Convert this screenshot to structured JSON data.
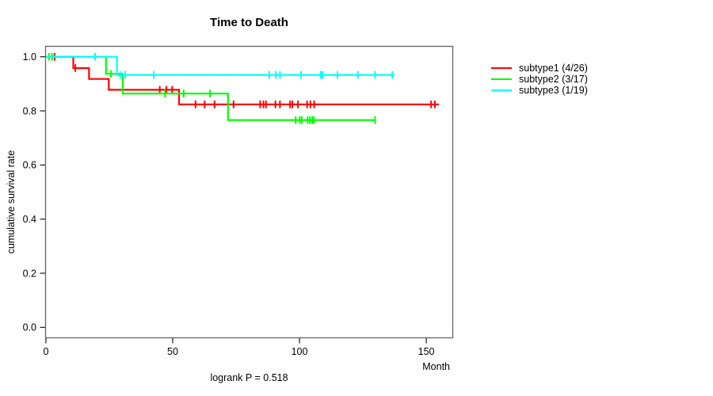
{
  "title": "Time to Death",
  "xlabel": "Month",
  "ylabel": "cumulative survival rate",
  "footnote": "logrank P = 0.518",
  "axes": {
    "x_ticks": [
      0,
      50,
      100,
      150
    ],
    "y_ticks": [
      {
        "label": "1.0",
        "value": 1.0
      },
      {
        "label": "0.8",
        "value": 0.8
      },
      {
        "label": "0.6",
        "value": 0.6
      },
      {
        "label": "0.4",
        "value": 0.4
      },
      {
        "label": "0.2",
        "value": 0.2
      },
      {
        "label": "0.0",
        "value": 0.0
      }
    ],
    "xlim": [
      -0.3,
      160.6
    ],
    "ylim": [
      -0.04,
      1.04
    ],
    "grid": false
  },
  "colors": {
    "subtype1": "#ff0000",
    "subtype2": "#00ff00",
    "subtype3": "#00ffff",
    "box": "#6b6b6b",
    "tick": "#1a1a1a",
    "text": "#000000"
  },
  "legend": [
    {
      "label": "subtype1 (4/26)",
      "color": "#ff0000"
    },
    {
      "label": "subtype2 (3/17)",
      "color": "#00ff00"
    },
    {
      "label": "subtype3 (1/19)",
      "color": "#00ffff"
    }
  ],
  "chart_data": {
    "type": "line",
    "style": "kaplan-meier-step",
    "title": "Time to Death",
    "xlabel": "Month",
    "ylabel": "cumulative survival rate",
    "legend_position": "right",
    "series": [
      {
        "name": "subtype1 (4/26)",
        "events": 4,
        "n": 26,
        "color": "#ff0000",
        "steps": [
          [
            0,
            1.0
          ],
          [
            10.8,
            1.0
          ],
          [
            10.8,
            0.958
          ],
          [
            17.0,
            0.958
          ],
          [
            17.0,
            0.918
          ],
          [
            24.8,
            0.918
          ],
          [
            24.8,
            0.878
          ],
          [
            52.5,
            0.878
          ],
          [
            52.5,
            0.824
          ],
          [
            155.0,
            0.824
          ]
        ],
        "censors": [
          [
            3.4,
            1.0
          ],
          [
            11.6,
            0.958
          ],
          [
            44.9,
            0.878
          ],
          [
            47.5,
            0.878
          ],
          [
            49.8,
            0.878
          ],
          [
            59.0,
            0.824
          ],
          [
            62.6,
            0.824
          ],
          [
            66.5,
            0.824
          ],
          [
            74.0,
            0.824
          ],
          [
            84.5,
            0.824
          ],
          [
            85.8,
            0.824
          ],
          [
            86.8,
            0.824
          ],
          [
            90.5,
            0.824
          ],
          [
            92.3,
            0.824
          ],
          [
            96.3,
            0.824
          ],
          [
            97.2,
            0.824
          ],
          [
            99.4,
            0.824
          ],
          [
            103.0,
            0.824
          ],
          [
            104.3,
            0.824
          ],
          [
            105.8,
            0.824
          ],
          [
            151.9,
            0.824
          ],
          [
            153.4,
            0.824
          ]
        ]
      },
      {
        "name": "subtype2 (3/17)",
        "events": 3,
        "n": 17,
        "color": "#00ff00",
        "steps": [
          [
            0,
            1.0
          ],
          [
            23.7,
            1.0
          ],
          [
            23.7,
            0.937
          ],
          [
            30.3,
            0.937
          ],
          [
            30.3,
            0.864
          ],
          [
            71.8,
            0.864
          ],
          [
            71.8,
            0.766
          ],
          [
            129.8,
            0.766
          ]
        ],
        "censors": [
          [
            1.2,
            1.0
          ],
          [
            2.4,
            1.0
          ],
          [
            25.6,
            0.937
          ],
          [
            47.0,
            0.864
          ],
          [
            54.3,
            0.864
          ],
          [
            64.7,
            0.864
          ],
          [
            98.5,
            0.766
          ],
          [
            100.1,
            0.766
          ],
          [
            100.9,
            0.766
          ],
          [
            103.2,
            0.766
          ],
          [
            104.1,
            0.766
          ],
          [
            105.0,
            0.766
          ],
          [
            105.7,
            0.766
          ],
          [
            129.8,
            0.766
          ]
        ]
      },
      {
        "name": "subtype3 (1/19)",
        "events": 1,
        "n": 19,
        "color": "#00ffff",
        "steps": [
          [
            0,
            1.0
          ],
          [
            28.0,
            1.0
          ],
          [
            28.0,
            0.933
          ],
          [
            137.5,
            0.933
          ]
        ],
        "censors": [
          [
            19.4,
            1.0
          ],
          [
            29.3,
            0.933
          ],
          [
            31.3,
            0.933
          ],
          [
            42.5,
            0.933
          ],
          [
            88.1,
            0.933
          ],
          [
            90.7,
            0.933
          ],
          [
            92.3,
            0.933
          ],
          [
            100.6,
            0.933
          ],
          [
            108.4,
            0.933
          ],
          [
            109.1,
            0.933
          ],
          [
            115.0,
            0.933
          ],
          [
            123.0,
            0.933
          ],
          [
            129.8,
            0.933
          ],
          [
            136.6,
            0.933
          ]
        ]
      }
    ]
  }
}
